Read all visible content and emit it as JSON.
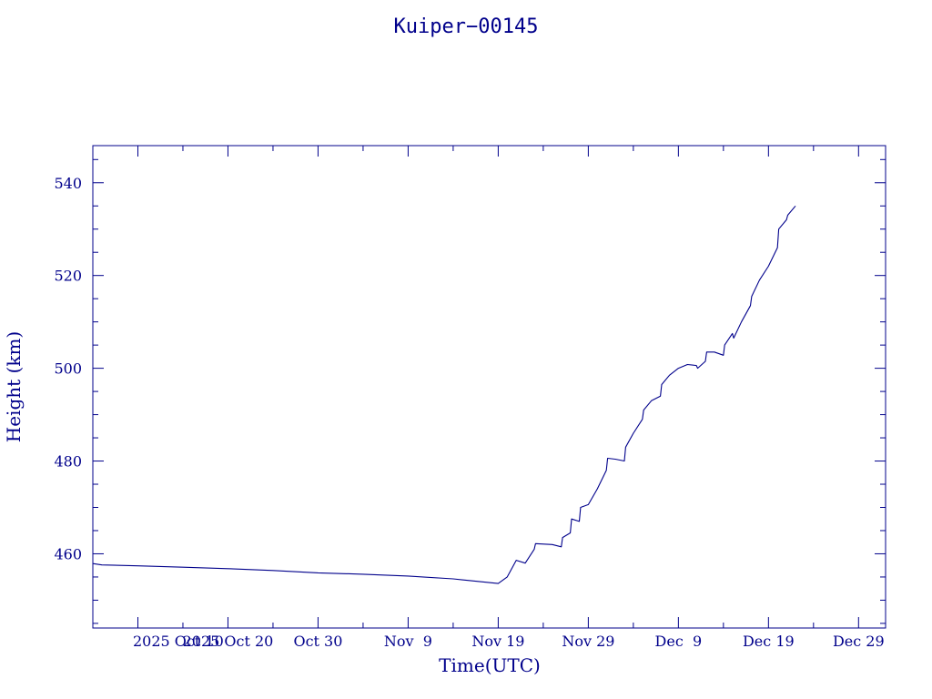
{
  "chart_data": {
    "type": "line",
    "title": "Kuiper−00145",
    "xlabel": "Time(UTC)",
    "ylabel": "Height (km)",
    "xlim": [
      "2025-10-05",
      "2026-01-01"
    ],
    "ylim": [
      444,
      548
    ],
    "x_ticks": [
      {
        "date": "2025-10-10",
        "label": "2025 Oct 10"
      },
      {
        "date": "2025-10-20",
        "label": "2025 Oct 20"
      },
      {
        "date": "2025-10-30",
        "label": "Oct 30"
      },
      {
        "date": "2025-11-09",
        "label": "Nov  9"
      },
      {
        "date": "2025-11-19",
        "label": "Nov 19"
      },
      {
        "date": "2025-11-29",
        "label": "Nov 29"
      },
      {
        "date": "2025-12-09",
        "label": "Dec  9"
      },
      {
        "date": "2025-12-19",
        "label": "Dec 19"
      },
      {
        "date": "2025-12-29",
        "label": "Dec 29"
      }
    ],
    "y_ticks": [
      460,
      480,
      500,
      520,
      540
    ],
    "grid": false,
    "series": [
      {
        "name": "",
        "points": [
          [
            "2025-10-05",
            457.9
          ],
          [
            "2025-10-06",
            457.6
          ],
          [
            "2025-10-10",
            457.4
          ],
          [
            "2025-10-15",
            457.1
          ],
          [
            "2025-10-20",
            456.8
          ],
          [
            "2025-10-25",
            456.4
          ],
          [
            "2025-10-30",
            455.9
          ],
          [
            "2025-11-04",
            455.6
          ],
          [
            "2025-11-09",
            455.2
          ],
          [
            "2025-11-14",
            454.6
          ],
          [
            "2025-11-18",
            453.8
          ],
          [
            "2025-11-19",
            453.6
          ],
          [
            "2025-11-20",
            455.0
          ],
          [
            "2025-11-21",
            458.6
          ],
          [
            "2025-11-22",
            458.0
          ],
          [
            "2025-11-23",
            461.0
          ],
          [
            "2025-11-23",
            462.2
          ],
          [
            "2025-11-25",
            462.0
          ],
          [
            "2025-11-26",
            461.5
          ],
          [
            "2025-11-26",
            463.5
          ],
          [
            "2025-11-27",
            464.5
          ],
          [
            "2025-11-27",
            467.5
          ],
          [
            "2025-11-28",
            467.0
          ],
          [
            "2025-11-28",
            470.0
          ],
          [
            "2025-11-29",
            470.6
          ],
          [
            "2025-11-30",
            474.0
          ],
          [
            "2025-12-01",
            478.0
          ],
          [
            "2025-12-01",
            480.6
          ],
          [
            "2025-12-02",
            480.4
          ],
          [
            "2025-12-03",
            480.0
          ],
          [
            "2025-12-03",
            483.0
          ],
          [
            "2025-12-04",
            486.0
          ],
          [
            "2025-12-05",
            489.0
          ],
          [
            "2025-12-05",
            491.0
          ],
          [
            "2025-12-06",
            493.0
          ],
          [
            "2025-12-07",
            494.0
          ],
          [
            "2025-12-07",
            496.5
          ],
          [
            "2025-12-08",
            498.5
          ],
          [
            "2025-12-09",
            500.0
          ],
          [
            "2025-12-10",
            500.8
          ],
          [
            "2025-12-11",
            500.6
          ],
          [
            "2025-12-11",
            500.0
          ],
          [
            "2025-12-12",
            501.5
          ],
          [
            "2025-12-12",
            503.5
          ],
          [
            "2025-12-13",
            503.5
          ],
          [
            "2025-12-14",
            502.8
          ],
          [
            "2025-12-14",
            505.0
          ],
          [
            "2025-12-15",
            507.5
          ],
          [
            "2025-12-15",
            506.5
          ],
          [
            "2025-12-16",
            510.0
          ],
          [
            "2025-12-17",
            513.5
          ],
          [
            "2025-12-17",
            515.5
          ],
          [
            "2025-12-18",
            519.0
          ],
          [
            "2025-12-19",
            522.0
          ],
          [
            "2025-12-20",
            526.0
          ],
          [
            "2025-12-20",
            530.0
          ],
          [
            "2025-12-21",
            532.0
          ],
          [
            "2025-12-21",
            533.0
          ],
          [
            "2025-12-22",
            535.0
          ]
        ]
      }
    ]
  }
}
